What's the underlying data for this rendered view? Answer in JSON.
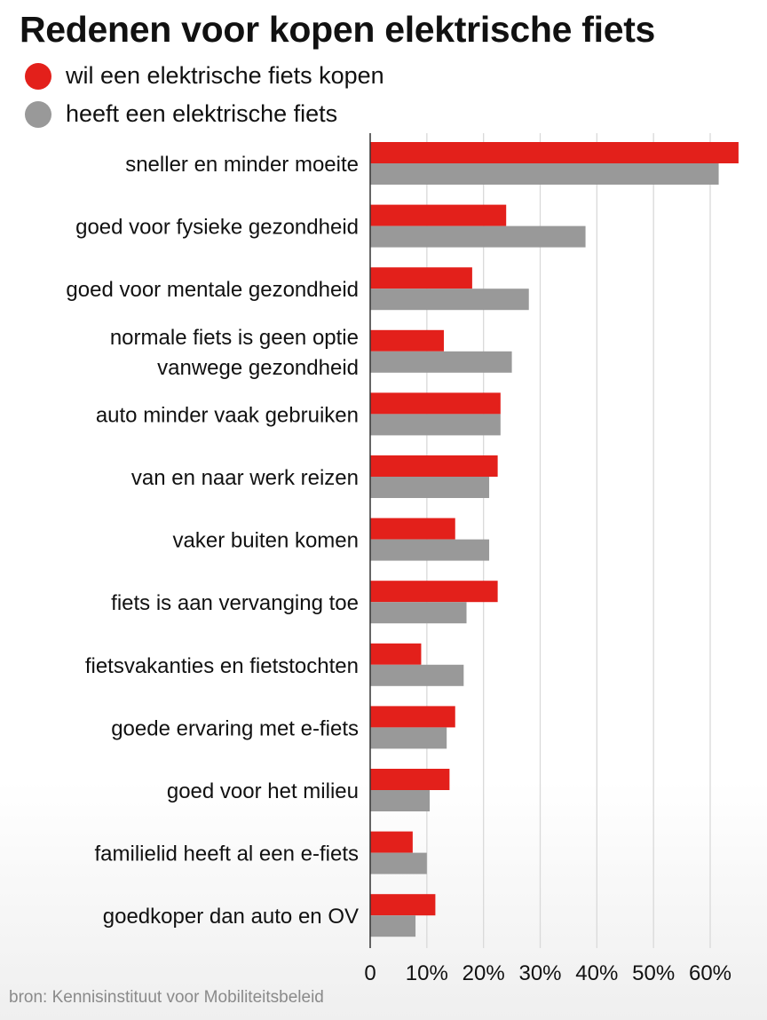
{
  "chart_data": {
    "type": "bar",
    "orientation": "horizontal",
    "title": "Redenen voor kopen elektrische fiets",
    "categories": [
      [
        "sneller en minder moeite"
      ],
      [
        "goed voor fysieke gezondheid"
      ],
      [
        "goed voor mentale gezondheid"
      ],
      [
        "normale fiets is geen optie",
        "vanwege gezondheid"
      ],
      [
        "auto minder vaak gebruiken"
      ],
      [
        "van en naar werk reizen"
      ],
      [
        "vaker buiten komen"
      ],
      [
        "fiets is aan vervanging toe"
      ],
      [
        "fietsvakanties en fietstochten"
      ],
      [
        "goede ervaring met e-fiets"
      ],
      [
        "goed voor het milieu"
      ],
      [
        "familielid heeft al een e-fiets"
      ],
      [
        "goedkoper dan auto en OV"
      ]
    ],
    "series": [
      {
        "name": "wil een elektrische fiets kopen",
        "color": "#e3201b",
        "values": [
          65,
          24,
          18,
          13,
          23,
          22.5,
          15,
          22.5,
          9,
          15,
          14,
          7.5,
          11.5
        ]
      },
      {
        "name": "heeft een elektrische fiets",
        "color": "#999999",
        "values": [
          61.5,
          38,
          28,
          25,
          23,
          21,
          21,
          17,
          16.5,
          13.5,
          10.5,
          10,
          8
        ]
      }
    ],
    "xlim": [
      0,
      65
    ],
    "xticks": [
      "0",
      "10%",
      "20%",
      "30%",
      "40%",
      "50%",
      "60%"
    ],
    "xtick_values": [
      0,
      10,
      20,
      30,
      40,
      50,
      60
    ],
    "grid": "vertical",
    "legend_position": "top-left"
  },
  "source": "bron: Kennisinstituut voor Mobiliteitsbeleid"
}
